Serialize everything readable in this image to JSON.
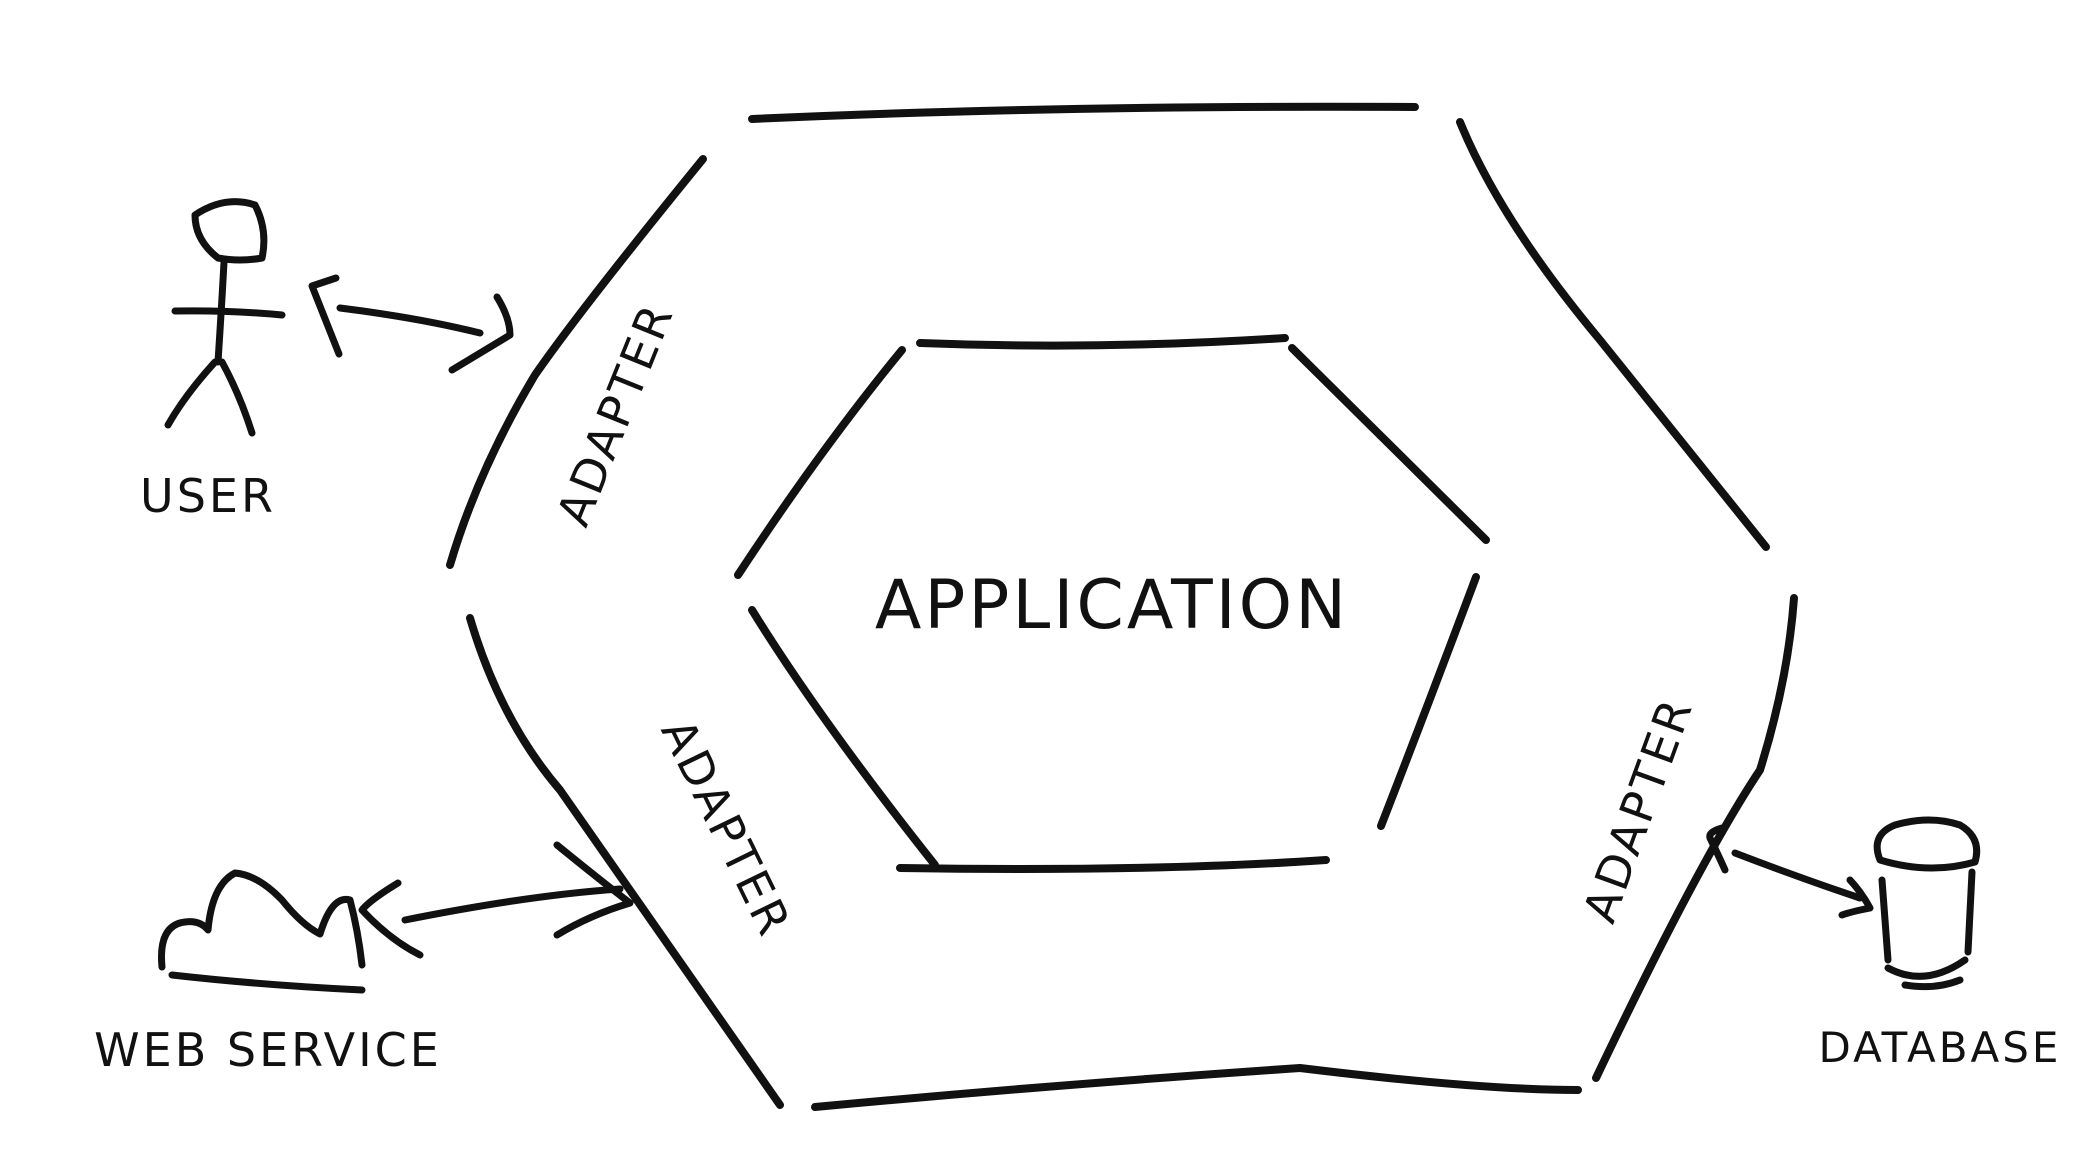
{
  "colors": {
    "background": "#ffffff",
    "ink": "#111111"
  },
  "labels": {
    "center": "APPLICATION",
    "adapter_top_left": "ADAPTER",
    "adapter_bottom_left": "ADAPTER",
    "adapter_right": "ADAPTER",
    "user": "USER",
    "web_service": "WEB SERVICE",
    "database": "DATABASE"
  },
  "icons": {
    "user": "stick-figure-icon",
    "web_service": "cloud-icon",
    "database": "database-cylinder-icon"
  }
}
